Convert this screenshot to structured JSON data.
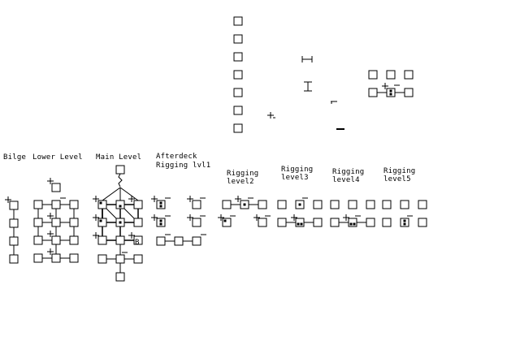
{
  "colors": {
    "background": "#ffffff",
    "ink": "#000000"
  },
  "labels": {
    "bilge": "Bilge",
    "lower_level": "Lower Level",
    "main_level": "Main Level",
    "afterdeck": "Afterdeck",
    "rigging_lvl1": "Rigging lvl1",
    "rigging2": "Rigging",
    "level2": "level2",
    "rigging3": "Rigging",
    "level3": "level3",
    "rigging4": "Rigging",
    "level4": "level4",
    "rigging5": "Rigging",
    "level5": "level5"
  },
  "legend_markers": [
    "+",
    "_",
    "+",
    "_"
  ],
  "room_glyphs": [
    "B"
  ]
}
